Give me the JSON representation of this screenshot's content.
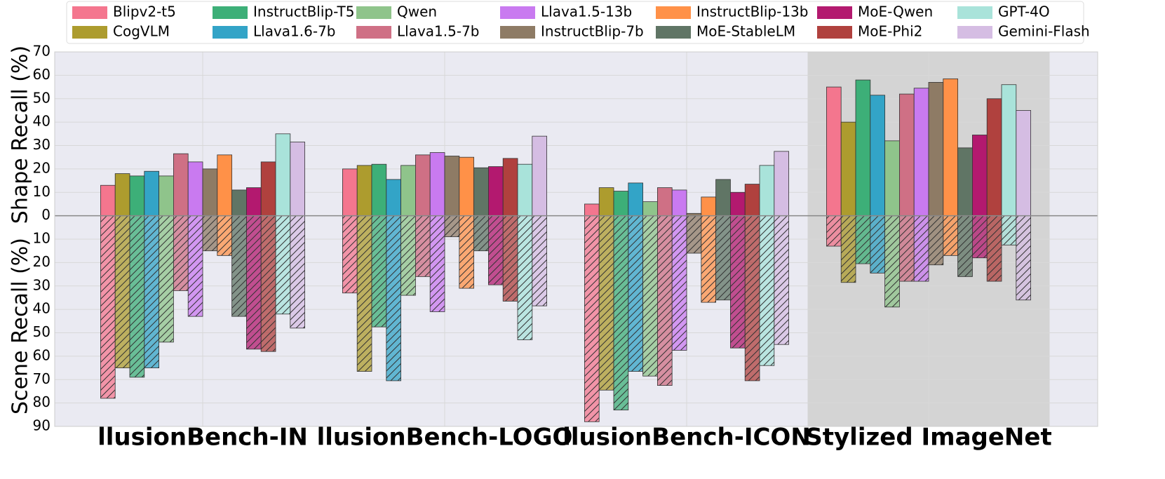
{
  "chart_data": {
    "type": "diverging-bar",
    "ylabel": "Shape Recall (%)",
    "ylabel2": "Scene Recall (%)",
    "categories": [
      "llusionBench-IN",
      "llusionBench-LOGO",
      "llusionBench-ICON",
      "Stylized ImageNet"
    ],
    "highlight": "Stylized ImageNet",
    "ylim": [
      -90,
      70
    ],
    "yticks": [
      70,
      60,
      50,
      40,
      30,
      20,
      10,
      0,
      {
        "value": -10,
        "label": "10"
      },
      {
        "value": -20,
        "label": "20"
      },
      {
        "value": -30,
        "label": "30"
      },
      {
        "value": -40,
        "label": "40"
      },
      {
        "value": -50,
        "label": "50"
      },
      {
        "value": -60,
        "label": "60"
      },
      {
        "value": -70,
        "label": "70"
      },
      {
        "value": -80,
        "label": "80"
      },
      {
        "value": -90,
        "label": "90"
      }
    ],
    "grid": true,
    "legend": "top",
    "series": [
      {
        "name": "Blipv2-t5",
        "color": "#f4768e",
        "values": [
          13,
          20,
          5,
          55
        ],
        "scene_values": [
          -78,
          -33,
          -88,
          -13
        ]
      },
      {
        "name": "CogVLM",
        "color": "#ad9c2e",
        "values": [
          18,
          21.5,
          12,
          40
        ],
        "scene_values": [
          -65,
          -66.5,
          -74.5,
          -28.5
        ]
      },
      {
        "name": "InstructBlip-T5",
        "color": "#3daf78",
        "values": [
          17,
          22,
          10.5,
          58
        ],
        "scene_values": [
          -69,
          -47.5,
          -83,
          -20.5
        ]
      },
      {
        "name": "Llava1.6-7b",
        "color": "#33a4c7",
        "values": [
          19,
          15.5,
          14,
          51.5
        ],
        "scene_values": [
          -65,
          -70.5,
          -66.5,
          -24.5
        ]
      },
      {
        "name": "Qwen",
        "color": "#8fc48b",
        "values": [
          17,
          21.5,
          6,
          32
        ],
        "scene_values": [
          -54,
          -34,
          -68.5,
          -39
        ]
      },
      {
        "name": "Llava1.5-7b",
        "color": "#cf7085",
        "values": [
          26.5,
          26,
          12,
          52
        ],
        "scene_values": [
          -32,
          -26,
          -72.5,
          -28
        ]
      },
      {
        "name": "Llava1.5-13b",
        "color": "#c97af0",
        "values": [
          23,
          27,
          11,
          54.5
        ],
        "scene_values": [
          -43,
          -41,
          -57.5,
          -28
        ]
      },
      {
        "name": "InstructBlip-7b",
        "color": "#8e7b65",
        "values": [
          20,
          25.5,
          1,
          57
        ],
        "scene_values": [
          -15,
          -9,
          -16,
          -21
        ]
      },
      {
        "name": "InstructBlip-13b",
        "color": "#ff9148",
        "values": [
          26,
          25,
          8,
          58.5
        ],
        "scene_values": [
          -17,
          -31,
          -37,
          -17
        ]
      },
      {
        "name": "MoE-StableLM",
        "color": "#607565",
        "values": [
          11,
          20.5,
          15.5,
          29
        ],
        "scene_values": [
          -43,
          -15,
          -36,
          -26
        ]
      },
      {
        "name": "MoE-Qwen",
        "color": "#b3196f",
        "values": [
          12,
          21,
          10,
          34.5
        ],
        "scene_values": [
          -57,
          -29.5,
          -56.5,
          -18
        ]
      },
      {
        "name": "MoE-Phi2",
        "color": "#b0413e",
        "values": [
          23,
          24.5,
          13.5,
          50
        ],
        "scene_values": [
          -58,
          -36.5,
          -70.5,
          -28
        ]
      },
      {
        "name": "GPT-4O",
        "color": "#a9e3da",
        "values": [
          35,
          22,
          21.5,
          56
        ],
        "scene_values": [
          -42,
          -53,
          -64,
          -12.5
        ]
      },
      {
        "name": "Gemini-Flash",
        "color": "#d5bde3",
        "values": [
          31.5,
          34,
          27.5,
          45
        ],
        "scene_values": [
          -48,
          -38.5,
          -55,
          -36
        ]
      }
    ]
  }
}
